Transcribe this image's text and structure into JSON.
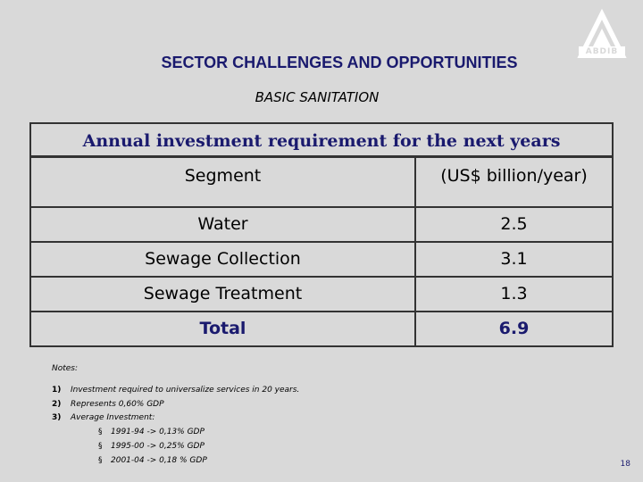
{
  "header": {
    "title": "SECTOR CHALLENGES AND OPPORTUNITIES",
    "subtitle": "BASIC SANITATION",
    "logo_text": "ABDIB"
  },
  "table": {
    "heading": "Annual investment requirement for the next years",
    "columns": [
      "Segment",
      "(US$ billion/year)"
    ],
    "rows": [
      {
        "segment": "Water",
        "value": "2.5"
      },
      {
        "segment": "Sewage Collection",
        "value": "3.1"
      },
      {
        "segment": "Sewage Treatment",
        "value": "1.3"
      },
      {
        "segment": "Total",
        "value": "6.9"
      }
    ]
  },
  "notes": {
    "label": "Notes:",
    "items": [
      {
        "num": "1)",
        "text": "Investment required to universalize services in 20 years."
      },
      {
        "num": "2)",
        "text": "Represents 0,60% GDP"
      },
      {
        "num": "3)",
        "text": "Average Investment:"
      }
    ],
    "bullets": [
      {
        "mark": "§",
        "text": "1991-94 -> 0,13% GDP"
      },
      {
        "mark": "§",
        "text": "1995-00 -> 0,25% GDP"
      },
      {
        "mark": "§",
        "text": "2001-04 -> 0,18 % GDP"
      }
    ]
  },
  "page_number": "18",
  "colors": {
    "background": "#d9d9d9",
    "accent": "#1a1a6e",
    "border": "#333333"
  }
}
